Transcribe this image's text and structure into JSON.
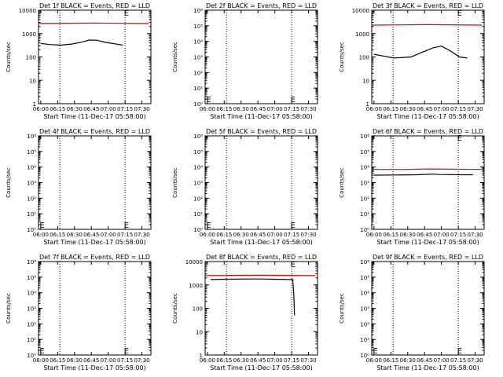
{
  "colors": {
    "events": "#000000",
    "lld": "#e00000",
    "axis": "#000000",
    "marker_line": "#000000"
  },
  "x_tick_labels": [
    "06:00",
    "06:15",
    "06:30",
    "06:45",
    "07:00",
    "07:15",
    "07:30"
  ],
  "y_axis_label": "Counts/sec",
  "chart_data": [
    {
      "type": "line",
      "title": "Det 1f BLACK = Events, RED = LLD",
      "xlabel": "Start Time (11-Dec-17 05:58:00)",
      "ylabel": "Counts/sec",
      "x_range_minutes": [
        0,
        100
      ],
      "y_log": true,
      "y_range": [
        1,
        10000
      ],
      "y_tick_labels": [
        "1",
        "10",
        "100",
        "1000",
        "10000"
      ],
      "markers_minutes": [
        19,
        77
      ],
      "series": [
        {
          "name": "Events",
          "color": "#000000",
          "points": [
            [
              2,
              380
            ],
            [
              10,
              340
            ],
            [
              20,
              320
            ],
            [
              30,
              360
            ],
            [
              40,
              450
            ],
            [
              45,
              530
            ],
            [
              52,
              520
            ],
            [
              60,
              420
            ],
            [
              70,
              350
            ],
            [
              75,
              320
            ]
          ]
        },
        {
          "name": "LLD",
          "color": "#e00000",
          "points": [
            [
              0,
              2700
            ],
            [
              50,
              2800
            ],
            [
              98,
              2700
            ]
          ]
        }
      ],
      "letters": [
        {
          "text": "E",
          "minute": 76,
          "value": 8000
        }
      ]
    },
    {
      "type": "line",
      "title": "Det 2f BLACK = Events, RED = LLD",
      "xlabel": "Start Time (11-Dec-17 05:58:00)",
      "ylabel": "Counts/sec",
      "x_range_minutes": [
        0,
        100
      ],
      "y_log": true,
      "y_range": [
        1,
        1000000
      ],
      "y_tick_labels": [
        "10⁰",
        "10¹",
        "10²",
        "10³",
        "10⁴",
        "10⁵",
        "10⁶"
      ],
      "markers_minutes": [
        19,
        77
      ],
      "series": [],
      "letters": [
        {
          "text": "E",
          "minute": 1,
          "value": 2
        },
        {
          "text": "E",
          "minute": 76,
          "value": 2
        }
      ]
    },
    {
      "type": "line",
      "title": "Det 3f BLACK = Events, RED = LLD",
      "xlabel": "Start Time (11-Dec-17 05:58:00)",
      "ylabel": "Counts/sec",
      "x_range_minutes": [
        0,
        100
      ],
      "y_log": true,
      "y_range": [
        1,
        10000
      ],
      "y_tick_labels": [
        "1",
        "10",
        "100",
        "1000",
        "10000"
      ],
      "markers_minutes": [
        19,
        77
      ],
      "series": [
        {
          "name": "Events",
          "color": "#000000",
          "points": [
            [
              2,
              130
            ],
            [
              10,
              110
            ],
            [
              20,
              90
            ],
            [
              35,
              100
            ],
            [
              45,
              160
            ],
            [
              55,
              250
            ],
            [
              62,
              290
            ],
            [
              70,
              180
            ],
            [
              78,
              100
            ],
            [
              85,
              90
            ]
          ]
        },
        {
          "name": "LLD",
          "color": "#e00000",
          "points": [
            [
              0,
              2300
            ],
            [
              50,
              2400
            ],
            [
              98,
              2300
            ]
          ]
        }
      ],
      "letters": [
        {
          "text": "E",
          "minute": 76,
          "value": 8000
        }
      ]
    },
    {
      "type": "line",
      "title": "Det 4f BLACK = Events, RED = LLD",
      "xlabel": "Start Time (11-Dec-17 05:58:00)",
      "ylabel": "Counts/sec",
      "x_range_minutes": [
        0,
        100
      ],
      "y_log": true,
      "y_range": [
        1,
        1000000
      ],
      "y_tick_labels": [
        "10⁰",
        "10¹",
        "10²",
        "10³",
        "10⁴",
        "10⁵",
        "10⁶"
      ],
      "markers_minutes": [
        19,
        77
      ],
      "series": [],
      "letters": [
        {
          "text": "E",
          "minute": 1,
          "value": 2
        },
        {
          "text": "E",
          "minute": 76,
          "value": 2
        }
      ]
    },
    {
      "type": "line",
      "title": "Det 5f BLACK = Events, RED = LLD",
      "xlabel": "Start Time (11-Dec-17 05:58:00)",
      "ylabel": "Counts/sec",
      "x_range_minutes": [
        0,
        100
      ],
      "y_log": true,
      "y_range": [
        1,
        1000000
      ],
      "y_tick_labels": [
        "10⁰",
        "10¹",
        "10²",
        "10³",
        "10⁴",
        "10⁵",
        "10⁶"
      ],
      "markers_minutes": [
        19,
        77
      ],
      "series": [],
      "letters": [
        {
          "text": "E",
          "minute": 1,
          "value": 2
        },
        {
          "text": "E",
          "minute": 76,
          "value": 2
        }
      ]
    },
    {
      "type": "line",
      "title": "Det 6f BLACK = Events, RED = LLD",
      "xlabel": "Start Time (11-Dec-17 05:58:00)",
      "ylabel": "Counts/sec",
      "x_range_minutes": [
        0,
        100
      ],
      "y_log": true,
      "y_range": [
        1,
        1000000
      ],
      "y_tick_labels": [
        "10⁰",
        "10¹",
        "10²",
        "10³",
        "10⁴",
        "10⁵",
        "10⁶"
      ],
      "markers_minutes": [
        19,
        77
      ],
      "series": [
        {
          "name": "Events",
          "color": "#000000",
          "points": [
            [
              2,
              3000
            ],
            [
              20,
              3100
            ],
            [
              40,
              3200
            ],
            [
              55,
              3500
            ],
            [
              60,
              3300
            ],
            [
              80,
              3200
            ],
            [
              90,
              3200
            ]
          ]
        },
        {
          "name": "LLD",
          "color": "#e00000",
          "points": [
            [
              0,
              7000
            ],
            [
              30,
              7000
            ],
            [
              50,
              7500
            ],
            [
              98,
              7000
            ]
          ]
        }
      ],
      "letters": [
        {
          "text": "E",
          "minute": 76,
          "value": 800000
        }
      ]
    },
    {
      "type": "line",
      "title": "Det 7f BLACK = Events, RED = LLD",
      "xlabel": "Start Time (11-Dec-17 05:58:00)",
      "ylabel": "Counts/sec",
      "x_range_minutes": [
        0,
        100
      ],
      "y_log": true,
      "y_range": [
        1,
        1000000
      ],
      "y_tick_labels": [
        "10⁰",
        "10¹",
        "10²",
        "10³",
        "10⁴",
        "10⁵",
        "10⁶"
      ],
      "markers_minutes": [
        19,
        77
      ],
      "series": [],
      "letters": [
        {
          "text": "E",
          "minute": 1,
          "value": 2
        },
        {
          "text": "E",
          "minute": 76,
          "value": 2
        }
      ]
    },
    {
      "type": "line",
      "title": "Det 8f BLACK = Events, RED = LLD",
      "xlabel": "Start Time (11-Dec-17 05:58:00)",
      "ylabel": "Counts/sec",
      "x_range_minutes": [
        0,
        100
      ],
      "y_log": true,
      "y_range": [
        1,
        10000
      ],
      "y_tick_labels": [
        "1",
        "10",
        "100",
        "1000",
        "10000"
      ],
      "markers_minutes": [
        19,
        77
      ],
      "series": [
        {
          "name": "Events",
          "color": "#000000",
          "points": [
            [
              5,
              1700
            ],
            [
              20,
              1750
            ],
            [
              40,
              1800
            ],
            [
              50,
              1800
            ],
            [
              60,
              1750
            ],
            [
              77,
              1700
            ],
            [
              78,
              1700
            ],
            [
              79,
              300
            ],
            [
              79.5,
              50
            ]
          ]
        },
        {
          "name": "LLD",
          "color": "#e00000",
          "points": [
            [
              0,
              2500
            ],
            [
              50,
              2600
            ],
            [
              98,
              2500
            ]
          ]
        }
      ],
      "letters": [
        {
          "text": "E",
          "minute": 76,
          "value": 8000
        }
      ]
    },
    {
      "type": "line",
      "title": "Det 9f BLACK = Events, RED = LLD",
      "xlabel": "Start Time (11-Dec-17 05:58:00)",
      "ylabel": "Counts/sec",
      "x_range_minutes": [
        0,
        100
      ],
      "y_log": true,
      "y_range": [
        1,
        1000000
      ],
      "y_tick_labels": [
        "10⁰",
        "10¹",
        "10²",
        "10³",
        "10⁴",
        "10⁵",
        "10⁶"
      ],
      "markers_minutes": [
        19,
        77
      ],
      "series": [],
      "letters": [
        {
          "text": "E",
          "minute": 1,
          "value": 2
        },
        {
          "text": "E",
          "minute": 76,
          "value": 2
        }
      ]
    }
  ]
}
